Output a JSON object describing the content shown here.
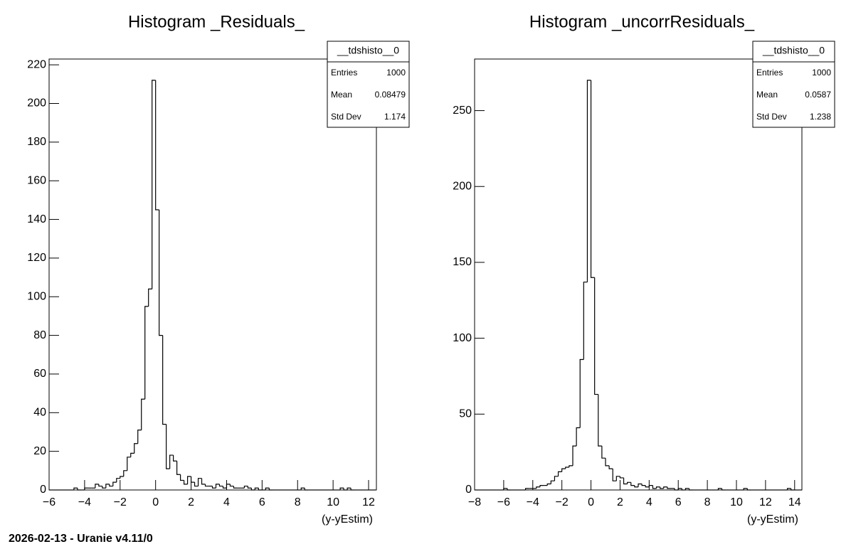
{
  "chart_data": [
    {
      "type": "histogram",
      "title": "Histogram _Residuals_",
      "x_label": "(y-yEstim)",
      "bins": [
        -6,
        -5.8,
        -5.6,
        -5.4,
        -5.2,
        -5,
        -4.8,
        -4.6,
        -4.4,
        -4.2,
        -4,
        -3.8,
        -3.6,
        -3.4,
        -3.2,
        -3,
        -2.8,
        -2.6,
        -2.4,
        -2.2,
        -2,
        -1.8,
        -1.6,
        -1.4,
        -1.2,
        -1,
        -0.8,
        -0.6,
        -0.4,
        -0.2,
        0,
        0.2,
        0.4,
        0.6,
        0.8,
        1,
        1.2,
        1.4,
        1.6,
        1.8,
        2,
        2.2,
        2.4,
        2.6,
        2.8,
        3,
        3.2,
        3.4,
        3.6,
        3.8,
        4,
        4.2,
        4.4,
        4.6,
        4.8,
        5,
        5.2,
        5.4,
        5.6,
        5.8,
        6,
        6.2,
        6.4,
        6.6,
        6.8,
        7,
        7.2,
        7.4,
        7.6,
        7.8,
        8,
        8.2,
        8.4,
        8.6,
        8.8,
        9,
        9.2,
        9.4,
        9.6,
        9.8,
        10,
        10.2,
        10.4,
        10.6,
        10.8,
        11,
        11.2,
        11.4,
        11.6,
        11.8,
        12,
        12.2,
        12.4
      ],
      "values": [
        0,
        0,
        0,
        0,
        0,
        0,
        0,
        1,
        0,
        0,
        1,
        1,
        1,
        3,
        2,
        1,
        3,
        2,
        4,
        6,
        7,
        10,
        17,
        19,
        24,
        31,
        47,
        95,
        104,
        212,
        145,
        80,
        34,
        11,
        18,
        15,
        8,
        5,
        3,
        7,
        4,
        2,
        6,
        3,
        2,
        2,
        1,
        3,
        2,
        1,
        3,
        2,
        1,
        1,
        1,
        2,
        1,
        0,
        1,
        0,
        0,
        1,
        0,
        0,
        0,
        0,
        0,
        0,
        0,
        0,
        0,
        1,
        0,
        0,
        0,
        0,
        0,
        0,
        0,
        0,
        0,
        0,
        1,
        0,
        1,
        0,
        0,
        0,
        0,
        0,
        0,
        0
      ],
      "color": "#000000",
      "xlim": [
        -6,
        12.44
      ],
      "ylim": [
        0,
        223
      ],
      "xticks": [
        {
          "value": -6,
          "label": "−6"
        },
        {
          "value": -4,
          "label": "−4"
        },
        {
          "value": -2,
          "label": "−2"
        },
        0,
        2,
        4,
        6,
        8,
        10,
        12
      ],
      "yticks": [
        0,
        20,
        40,
        60,
        80,
        100,
        120,
        140,
        160,
        180,
        200,
        220
      ],
      "stats": {
        "title": "__tdshisto__0",
        "rows": [
          [
            "Entries",
            "1000"
          ],
          [
            "Mean",
            "0.08479"
          ],
          [
            "Std Dev",
            "1.174"
          ]
        ]
      }
    },
    {
      "type": "histogram",
      "title": "Histogram _uncorrResiduals_",
      "x_label": "(y-yEstim)",
      "bins": [
        -8,
        -7.75,
        -7.5,
        -7.25,
        -7,
        -6.75,
        -6.5,
        -6.25,
        -6,
        -5.75,
        -5.5,
        -5.25,
        -5,
        -4.75,
        -4.5,
        -4.25,
        -4,
        -3.75,
        -3.5,
        -3.25,
        -3,
        -2.75,
        -2.5,
        -2.25,
        -2,
        -1.75,
        -1.5,
        -1.25,
        -1,
        -0.75,
        -0.5,
        -0.25,
        0,
        0.25,
        0.5,
        0.75,
        1,
        1.25,
        1.5,
        1.75,
        2,
        2.25,
        2.5,
        2.75,
        3,
        3.25,
        3.5,
        3.75,
        4,
        4.25,
        4.5,
        4.75,
        5,
        5.25,
        5.5,
        5.75,
        6,
        6.25,
        6.5,
        6.75,
        7,
        7.25,
        7.5,
        7.75,
        8,
        8.25,
        8.5,
        8.75,
        9,
        9.25,
        9.5,
        9.75,
        10,
        10.25,
        10.5,
        10.75,
        11,
        11.25,
        11.5,
        11.75,
        12,
        12.25,
        12.5,
        12.75,
        13,
        13.25,
        13.5,
        13.75,
        14,
        14.25,
        14.5
      ],
      "values": [
        0,
        0,
        0,
        0,
        0,
        0,
        0,
        0,
        1,
        0,
        0,
        0,
        0,
        0,
        1,
        1,
        1,
        2,
        3,
        3,
        4,
        6,
        9,
        12,
        14,
        15,
        16,
        29,
        41,
        86,
        137,
        270,
        140,
        63,
        29,
        21,
        16,
        14,
        6,
        9,
        8,
        4,
        5,
        3,
        2,
        4,
        3,
        2,
        3,
        1,
        2,
        1,
        2,
        1,
        1,
        0,
        1,
        0,
        1,
        0,
        0,
        0,
        0,
        0,
        0,
        0,
        0,
        1,
        0,
        0,
        0,
        0,
        0,
        0,
        1,
        0,
        0,
        0,
        0,
        0,
        0,
        0,
        0,
        0,
        0,
        0,
        1,
        0,
        0,
        0
      ],
      "color": "#000000",
      "xlim": [
        -8,
        14.5
      ],
      "ylim": [
        0,
        284
      ],
      "xticks": [
        {
          "value": -8,
          "label": "−8"
        },
        {
          "value": -6,
          "label": "−6"
        },
        {
          "value": -4,
          "label": "−4"
        },
        {
          "value": -2,
          "label": "−2"
        },
        0,
        2,
        4,
        6,
        8,
        10,
        12,
        14
      ],
      "yticks": [
        0,
        50,
        100,
        150,
        200,
        250
      ],
      "stats": {
        "title": "__tdshisto__0",
        "rows": [
          [
            "Entries",
            "1000"
          ],
          [
            "Mean",
            "0.0587"
          ],
          [
            "Std Dev",
            "1.238"
          ]
        ]
      }
    }
  ],
  "footer": "2026-02-13 - Uranie v4.11/0"
}
